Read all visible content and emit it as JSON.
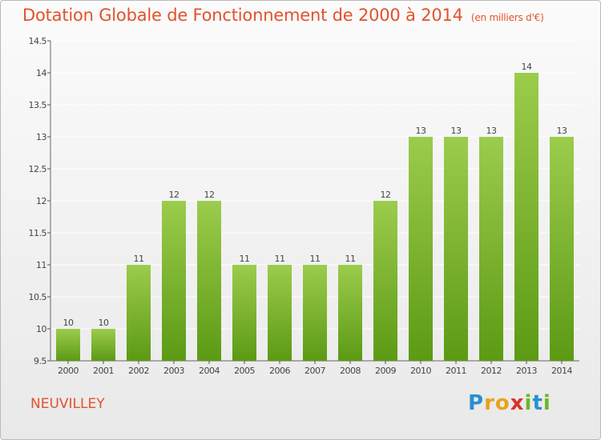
{
  "title": "Dotation Globale de Fonctionnement de 2000 à 2014",
  "subtitle": "(en milliers d'€)",
  "location": "NEUVILLEY",
  "brand": {
    "letters": [
      {
        "char": "P",
        "color": "#2a8fd0"
      },
      {
        "char": "r",
        "color": "#e8a21a"
      },
      {
        "char": "o",
        "color": "#e8a21a"
      },
      {
        "char": "x",
        "color": "#d8322b"
      },
      {
        "char": "i",
        "color": "#6bb82a"
      },
      {
        "char": "t",
        "color": "#2a8fd0"
      },
      {
        "char": "i",
        "color": "#6bb82a"
      }
    ]
  },
  "colors": {
    "bar_top": "#9ccc4c",
    "bar_bottom": "#5c9a14",
    "accent": "#e2522b",
    "grid": "#ffffff"
  },
  "chart_data": {
    "type": "bar",
    "categories": [
      "2000",
      "2001",
      "2002",
      "2003",
      "2004",
      "2005",
      "2006",
      "2007",
      "2008",
      "2009",
      "2010",
      "2011",
      "2012",
      "2013",
      "2014"
    ],
    "values": [
      10,
      10,
      11,
      12,
      12,
      11,
      11,
      11,
      11,
      12,
      13,
      13,
      13,
      14,
      13
    ],
    "data_labels": [
      "10",
      "10",
      "11",
      "12",
      "12",
      "11",
      "11",
      "11",
      "11",
      "12",
      "13",
      "13",
      "13",
      "14",
      "13"
    ],
    "ylim": [
      9.5,
      14.5
    ],
    "yticks": [
      9.5,
      10,
      10.5,
      11,
      11.5,
      12,
      12.5,
      13,
      13.5,
      14,
      14.5
    ],
    "ytick_labels": [
      "9.5",
      "10",
      "10.5",
      "11",
      "11.5",
      "12",
      "12.5",
      "13",
      "13.5",
      "14",
      "14.5"
    ],
    "xlabel": "",
    "ylabel": "",
    "grid": true
  }
}
